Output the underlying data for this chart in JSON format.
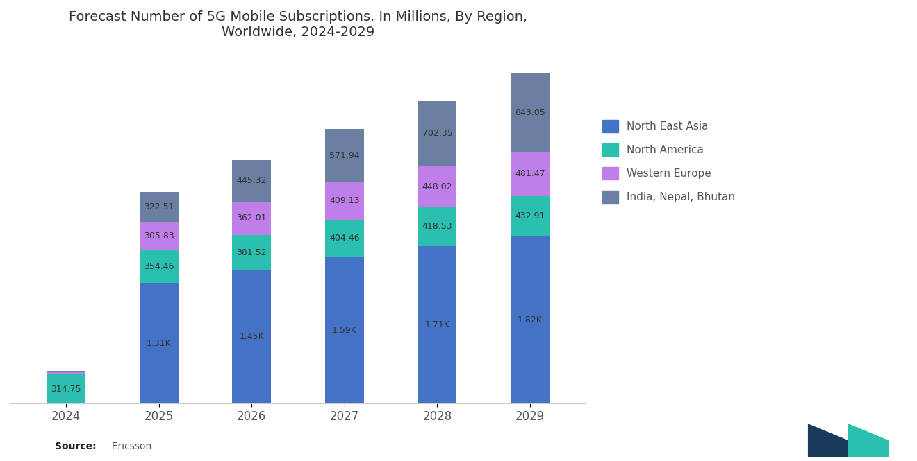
{
  "years": [
    "2024",
    "2025",
    "2026",
    "2027",
    "2028",
    "2029"
  ],
  "north_east_asia": [
    0,
    1310,
    1450,
    1590,
    1710,
    1820
  ],
  "north_america": [
    314.75,
    354.46,
    381.52,
    404.46,
    418.53,
    432.91
  ],
  "western_europe": [
    30,
    305.83,
    362.01,
    409.13,
    448.02,
    481.47
  ],
  "india_nepal_bhutan": [
    15,
    322.51,
    445.32,
    571.94,
    702.35,
    843.05
  ],
  "labels_nea": [
    "",
    "1.31K",
    "1.45K",
    "1.59K",
    "1.71K",
    "1.82K"
  ],
  "labels_na": [
    "314.75",
    "354.46",
    "381.52",
    "404.46",
    "418.53",
    "432.91"
  ],
  "labels_we": [
    "",
    "305.83",
    "362.01",
    "409.13",
    "448.02",
    "481.47"
  ],
  "labels_inb": [
    "",
    "322.51",
    "445.32",
    "571.94",
    "702.35",
    "843.05"
  ],
  "color_nea": "#4472C4",
  "color_na": "#2BBFB0",
  "color_we": "#C07FE8",
  "color_inb": "#6B7FA3",
  "title_line1": "Forecast Number of 5G Mobile Subscriptions, In Millions, By Region,",
  "title_line2": "Worldwide, 2024-2029",
  "source_bold": "Source:",
  "source_normal": "  Ericsson",
  "bg_color": "#FFFFFF",
  "bar_width": 0.42,
  "label_fontsize": 9,
  "label_color": "#333333",
  "tick_fontsize": 12,
  "tick_color": "#555555",
  "legend_labels": [
    "North East Asia",
    "North America",
    "Western Europe",
    "India, Nepal, Bhutan"
  ],
  "legend_colors": [
    "#4472C4",
    "#2BBFB0",
    "#C07FE8",
    "#6B7FA3"
  ]
}
